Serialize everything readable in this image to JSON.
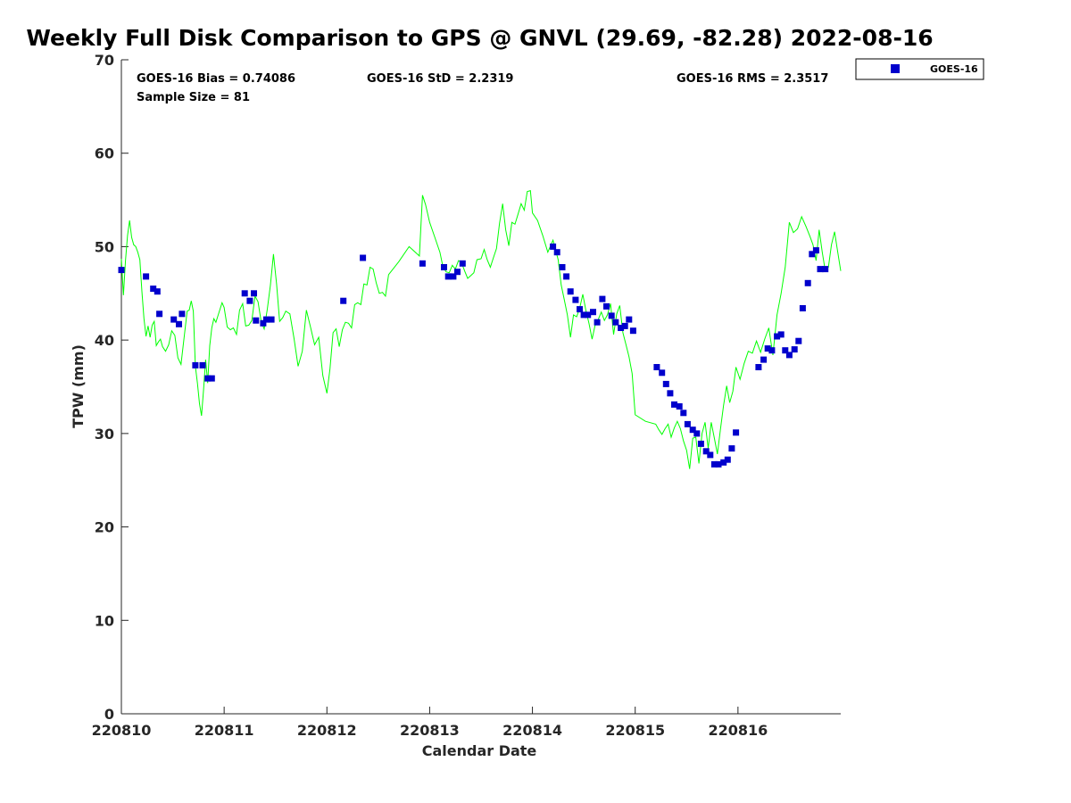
{
  "chart_data": {
    "type": "scatter",
    "title": "Weekly Full Disk Comparison to GPS @ GNVL (29.69, -82.28) 2022-08-16",
    "xlabel": "Calendar Date",
    "ylabel": "TPW (mm)",
    "xlim": [
      0,
      7
    ],
    "ylim": [
      0,
      70
    ],
    "x_ticks": [
      0,
      1,
      2,
      3,
      4,
      5,
      6
    ],
    "x_tick_labels": [
      "220810",
      "220811",
      "220812",
      "220813",
      "220814",
      "220815",
      "220816"
    ],
    "y_ticks": [
      0,
      10,
      20,
      30,
      40,
      50,
      60,
      70
    ],
    "y_tick_labels": [
      "0",
      "10",
      "20",
      "30",
      "40",
      "50",
      "60",
      "70"
    ],
    "legend_position": "outside-top-right",
    "stats": {
      "bias": "GOES-16 Bias = 0.74086",
      "std": "GOES-16 StD = 2.2319",
      "rms": "GOES-16 RMS = 2.3517",
      "sample_size": "Sample Size = 81"
    },
    "series": [
      {
        "name": "GOES-16",
        "marker": "square",
        "color": "#0000cc",
        "x": [
          0.0,
          0.24,
          0.31,
          0.35,
          0.37,
          0.51,
          0.56,
          0.59,
          0.72,
          0.79,
          0.84,
          0.88,
          1.2,
          1.25,
          1.29,
          1.31,
          1.38,
          1.41,
          1.46,
          2.16,
          2.35,
          2.93,
          3.14,
          3.18,
          3.23,
          3.27,
          3.32,
          4.2,
          4.24,
          4.29,
          4.33,
          4.37,
          4.42,
          4.46,
          4.5,
          4.54,
          4.59,
          4.63,
          4.68,
          4.72,
          4.77,
          4.81,
          4.86,
          4.9,
          4.94,
          4.98,
          5.21,
          5.26,
          5.3,
          5.34,
          5.38,
          5.43,
          5.47,
          5.51,
          5.56,
          5.6,
          5.64,
          5.69,
          5.73,
          5.77,
          5.81,
          5.86,
          5.9,
          5.94,
          5.98,
          6.2,
          6.25,
          6.29,
          6.33,
          6.38,
          6.42,
          6.46,
          6.5,
          6.55,
          6.59,
          6.63,
          6.68,
          6.72,
          6.76,
          6.8,
          6.85
        ],
        "y": [
          47.5,
          46.8,
          45.5,
          45.2,
          42.8,
          42.2,
          41.7,
          42.8,
          37.3,
          37.3,
          35.9,
          35.9,
          45.0,
          44.2,
          45.0,
          42.1,
          41.8,
          42.2,
          42.2,
          44.2,
          48.8,
          48.2,
          47.8,
          46.8,
          46.8,
          47.3,
          48.2,
          50.0,
          49.4,
          47.8,
          46.8,
          45.2,
          44.3,
          43.3,
          42.7,
          42.7,
          43.0,
          41.9,
          44.4,
          43.6,
          42.6,
          41.9,
          41.3,
          41.5,
          42.2,
          41.0,
          37.1,
          36.5,
          35.3,
          34.3,
          33.1,
          32.9,
          32.2,
          31.0,
          30.4,
          30.0,
          28.9,
          28.1,
          27.7,
          26.7,
          26.7,
          26.9,
          27.2,
          28.4,
          30.1,
          37.1,
          37.9,
          39.1,
          38.9,
          40.4,
          40.6,
          38.9,
          38.4,
          39.0,
          39.9,
          43.4,
          46.1,
          49.2,
          49.6,
          47.6,
          47.6
        ]
      },
      {
        "name": "",
        "line": true,
        "color": "#00ff00",
        "x": [
          0.0,
          0.02,
          0.04,
          0.06,
          0.08,
          0.1,
          0.12,
          0.14,
          0.16,
          0.18,
          0.2,
          0.22,
          0.24,
          0.26,
          0.28,
          0.3,
          0.32,
          0.34,
          0.36,
          0.38,
          0.4,
          0.43,
          0.46,
          0.49,
          0.52,
          0.55,
          0.58,
          0.61,
          0.64,
          0.66,
          0.68,
          0.7,
          0.72,
          0.74,
          0.76,
          0.78,
          0.8,
          0.82,
          0.84,
          0.86,
          0.88,
          0.9,
          0.92,
          0.94,
          0.96,
          0.98,
          1.0,
          1.03,
          1.06,
          1.09,
          1.12,
          1.15,
          1.18,
          1.21,
          1.24,
          1.27,
          1.3,
          1.33,
          1.36,
          1.39,
          1.42,
          1.45,
          1.48,
          1.51,
          1.54,
          1.57,
          1.6,
          1.64,
          1.68,
          1.72,
          1.76,
          1.8,
          1.84,
          1.88,
          1.92,
          1.96,
          2.0,
          2.03,
          2.06,
          2.09,
          2.12,
          2.15,
          2.18,
          2.21,
          2.24,
          2.27,
          2.3,
          2.33,
          2.36,
          2.39,
          2.42,
          2.45,
          2.48,
          2.51,
          2.54,
          2.57,
          2.6,
          2.7,
          2.8,
          2.9,
          2.93,
          2.96,
          3.0,
          3.05,
          3.1,
          3.13,
          3.16,
          3.19,
          3.22,
          3.25,
          3.28,
          3.31,
          3.34,
          3.37,
          3.4,
          3.43,
          3.46,
          3.5,
          3.53,
          3.56,
          3.59,
          3.62,
          3.65,
          3.68,
          3.71,
          3.74,
          3.77,
          3.8,
          3.83,
          3.86,
          3.89,
          3.92,
          3.95,
          3.98,
          4.0,
          4.05,
          4.1,
          4.15,
          4.2,
          4.25,
          4.28,
          4.31,
          4.34,
          4.37,
          4.4,
          4.43,
          4.46,
          4.49,
          4.52,
          4.55,
          4.58,
          4.61,
          4.64,
          4.67,
          4.7,
          4.73,
          4.76,
          4.79,
          4.82,
          4.85,
          4.88,
          4.91,
          4.94,
          4.97,
          5.0,
          5.1,
          5.2,
          5.23,
          5.26,
          5.29,
          5.32,
          5.35,
          5.38,
          5.41,
          5.44,
          5.47,
          5.5,
          5.53,
          5.56,
          5.59,
          5.62,
          5.65,
          5.68,
          5.71,
          5.74,
          5.77,
          5.8,
          5.83,
          5.86,
          5.89,
          5.92,
          5.95,
          5.98,
          6.02,
          6.06,
          6.1,
          6.14,
          6.18,
          6.22,
          6.26,
          6.3,
          6.34,
          6.38,
          6.42,
          6.46,
          6.5,
          6.54,
          6.58,
          6.62,
          6.66,
          6.7,
          6.73,
          6.76,
          6.79,
          6.82,
          6.85,
          6.88,
          6.91,
          6.94,
          6.97,
          7.0
        ],
        "y": [
          48.7,
          44.8,
          48.5,
          51.2,
          52.8,
          51.0,
          50.2,
          50.0,
          49.4,
          48.6,
          45.2,
          42.3,
          40.4,
          41.5,
          40.3,
          41.6,
          42.0,
          39.4,
          39.8,
          40.1,
          39.3,
          38.8,
          39.5,
          41.0,
          40.5,
          38.1,
          37.4,
          40.2,
          43.1,
          43.2,
          44.2,
          43.1,
          37.2,
          35.4,
          33.2,
          31.9,
          34.7,
          37.9,
          35.4,
          39.4,
          41.3,
          42.3,
          41.9,
          42.6,
          43.3,
          44.0,
          43.5,
          41.4,
          41.1,
          41.3,
          40.6,
          43.2,
          43.9,
          41.5,
          41.6,
          42.1,
          44.7,
          44.1,
          42.0,
          41.2,
          43.3,
          45.9,
          49.2,
          46.0,
          42.0,
          42.4,
          43.1,
          42.8,
          40.2,
          37.2,
          38.8,
          43.2,
          41.4,
          39.5,
          40.3,
          36.2,
          34.3,
          36.9,
          40.8,
          41.2,
          39.3,
          41.1,
          41.9,
          41.8,
          41.3,
          43.8,
          44.0,
          43.8,
          46.0,
          45.9,
          47.8,
          47.6,
          46.1,
          45.0,
          45.1,
          44.7,
          47.0,
          48.4,
          50.0,
          49.0,
          55.5,
          54.5,
          52.6,
          51.0,
          49.4,
          47.8,
          47.3,
          47.2,
          48.0,
          47.6,
          48.5,
          48.3,
          47.4,
          46.6,
          46.9,
          47.2,
          48.6,
          48.7,
          49.7,
          48.6,
          47.8,
          48.8,
          49.8,
          52.5,
          54.6,
          51.8,
          50.1,
          52.6,
          52.4,
          53.5,
          54.6,
          53.9,
          55.9,
          56.0,
          53.6,
          52.8,
          51.2,
          49.4,
          50.7,
          48.6,
          45.9,
          44.3,
          42.7,
          40.3,
          42.7,
          42.5,
          43.4,
          44.9,
          43.2,
          41.8,
          40.1,
          41.6,
          42.2,
          43.0,
          42.1,
          42.7,
          43.9,
          40.6,
          42.8,
          43.7,
          40.8,
          39.5,
          38.2,
          36.4,
          32.0,
          31.3,
          31.0,
          30.4,
          29.9,
          30.5,
          31.0,
          29.6,
          30.6,
          31.3,
          30.5,
          29.2,
          28.2,
          26.2,
          29.5,
          29.6,
          26.8,
          30.0,
          31.2,
          28.4,
          31.2,
          29.5,
          27.8,
          30.5,
          33.0,
          35.1,
          33.3,
          34.5,
          37.1,
          35.8,
          37.5,
          38.8,
          38.6,
          39.9,
          38.7,
          40.1,
          41.3,
          38.4,
          42.7,
          45.0,
          47.8,
          52.6,
          51.5,
          51.9,
          53.2,
          52.2,
          51.1,
          50.2,
          48.5,
          51.8,
          49.4,
          47.4,
          47.8,
          50.2,
          51.6,
          49.5,
          47.4
        ]
      }
    ]
  }
}
